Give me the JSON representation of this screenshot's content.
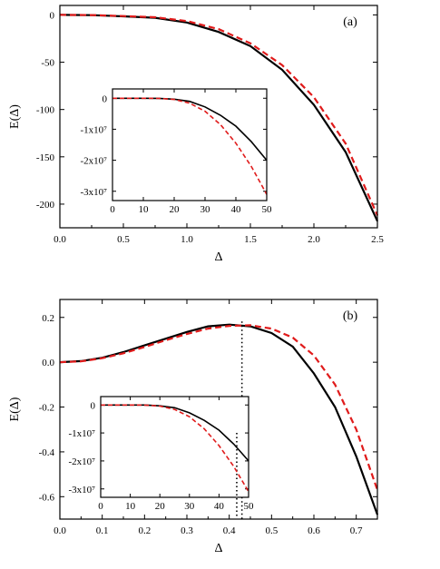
{
  "colors": {
    "series_solid": "#000000",
    "series_dashed": "#e01b1b"
  },
  "chart_data": [
    {
      "panel": "a",
      "type": "line",
      "tag": "(a)",
      "xlabel": "Δ",
      "ylabel": "E(Δ)",
      "xlim": [
        0,
        2.5
      ],
      "ylim": [
        -225,
        10
      ],
      "xticks": [
        0.0,
        0.5,
        1.0,
        1.5,
        2.0,
        2.5
      ],
      "xtick_labels": [
        "0.0",
        "0.5",
        "1.0",
        "1.5",
        "2.0",
        "2.5"
      ],
      "yticks": [
        0,
        -50,
        -100,
        -150,
        -200
      ],
      "ytick_labels": [
        "0",
        "-50",
        "-100",
        "-150",
        "-200"
      ],
      "series": [
        {
          "style": "solid",
          "x": [
            0,
            0.25,
            0.5,
            0.75,
            1.0,
            1.25,
            1.5,
            1.75,
            2.0,
            2.25,
            2.5
          ],
          "y": [
            0,
            -0.3,
            -1.5,
            -3,
            -8,
            -18,
            -33,
            -58,
            -95,
            -145,
            -218
          ]
        },
        {
          "style": "dashed",
          "x": [
            0,
            0.25,
            0.5,
            0.75,
            1.0,
            1.25,
            1.5,
            1.75,
            2.0,
            2.25,
            2.5
          ],
          "y": [
            0,
            -0.2,
            -1.2,
            -2.5,
            -6.5,
            -15,
            -30,
            -53,
            -87,
            -136,
            -212
          ]
        }
      ],
      "inset": {
        "xlim": [
          0,
          50
        ],
        "ylim": [
          -33000000,
          3000000
        ],
        "xticks": [
          0,
          10,
          20,
          30,
          40,
          50
        ],
        "xtick_labels": [
          "0",
          "10",
          "20",
          "30",
          "40",
          "50"
        ],
        "yticks": [
          0,
          -10000000,
          -20000000,
          -30000000
        ],
        "ytick_labels": [
          "0",
          "-1x10⁷",
          "-2x10⁷",
          "-3x10⁷"
        ],
        "series": [
          {
            "style": "solid",
            "x": [
              0,
              10,
              15,
              20,
              25,
              30,
              35,
              40,
              45,
              50
            ],
            "y": [
              0,
              0,
              -30000,
              -300000,
              -1000000,
              -2800000,
              -5500000,
              -9000000,
              -14000000,
              -20000000
            ]
          },
          {
            "style": "dashed",
            "x": [
              0,
              10,
              15,
              20,
              25,
              30,
              35,
              40,
              45,
              50
            ],
            "y": [
              0,
              0,
              -40000,
              -400000,
              -1600000,
              -4200000,
              -8500000,
              -14500000,
              -22000000,
              -31000000
            ]
          }
        ]
      }
    },
    {
      "panel": "b",
      "type": "line",
      "tag": "(b)",
      "xlabel": "Δ",
      "ylabel": "E(Δ)",
      "xlim": [
        0,
        0.75
      ],
      "ylim": [
        -0.7,
        0.28
      ],
      "xticks": [
        0.0,
        0.1,
        0.2,
        0.3,
        0.4,
        0.5,
        0.6,
        0.7
      ],
      "xtick_labels": [
        "0.0",
        "0.1",
        "0.2",
        "0.3",
        "0.4",
        "0.5",
        "0.6",
        "0.7"
      ],
      "yticks": [
        0.2,
        0.0,
        -0.2,
        -0.4,
        -0.6
      ],
      "ytick_labels": [
        "0.2",
        "0.0",
        "-0.2",
        "-0.4",
        "-0.6"
      ],
      "vline_x": 0.43,
      "series": [
        {
          "style": "solid",
          "x": [
            0,
            0.05,
            0.1,
            0.15,
            0.2,
            0.25,
            0.3,
            0.35,
            0.4,
            0.45,
            0.5,
            0.55,
            0.6,
            0.65,
            0.7,
            0.75
          ],
          "y": [
            0,
            0.005,
            0.02,
            0.045,
            0.075,
            0.105,
            0.135,
            0.16,
            0.168,
            0.16,
            0.13,
            0.07,
            -0.05,
            -0.2,
            -0.42,
            -0.68
          ]
        },
        {
          "style": "dashed",
          "x": [
            0,
            0.05,
            0.1,
            0.15,
            0.2,
            0.25,
            0.3,
            0.35,
            0.4,
            0.45,
            0.5,
            0.55,
            0.6,
            0.65,
            0.7,
            0.75
          ],
          "y": [
            0,
            0.004,
            0.018,
            0.04,
            0.068,
            0.098,
            0.126,
            0.15,
            0.162,
            0.165,
            0.15,
            0.11,
            0.03,
            -0.1,
            -0.3,
            -0.57
          ]
        }
      ],
      "inset": {
        "xlim": [
          0,
          50
        ],
        "ylim": [
          -33000000,
          3000000
        ],
        "xticks": [
          0,
          10,
          20,
          30,
          40,
          50
        ],
        "xtick_labels": [
          "0",
          "10",
          "20",
          "30",
          "40",
          "50"
        ],
        "yticks": [
          0,
          -10000000,
          -20000000,
          -30000000
        ],
        "ytick_labels": [
          "0",
          "-1x10⁷",
          "-2x10⁷",
          "-3x10⁷"
        ],
        "vline_x": 46,
        "series": [
          {
            "style": "solid",
            "x": [
              0,
              10,
              15,
              20,
              25,
              30,
              35,
              40,
              45,
              50
            ],
            "y": [
              0,
              0,
              -30000,
              -300000,
              -1000000,
              -2800000,
              -5500000,
              -9000000,
              -14000000,
              -20000000
            ]
          },
          {
            "style": "dashed",
            "x": [
              0,
              10,
              15,
              20,
              25,
              30,
              35,
              40,
              45,
              50
            ],
            "y": [
              0,
              0,
              -40000,
              -400000,
              -1600000,
              -4200000,
              -8500000,
              -14500000,
              -22000000,
              -31000000
            ]
          }
        ]
      }
    }
  ]
}
